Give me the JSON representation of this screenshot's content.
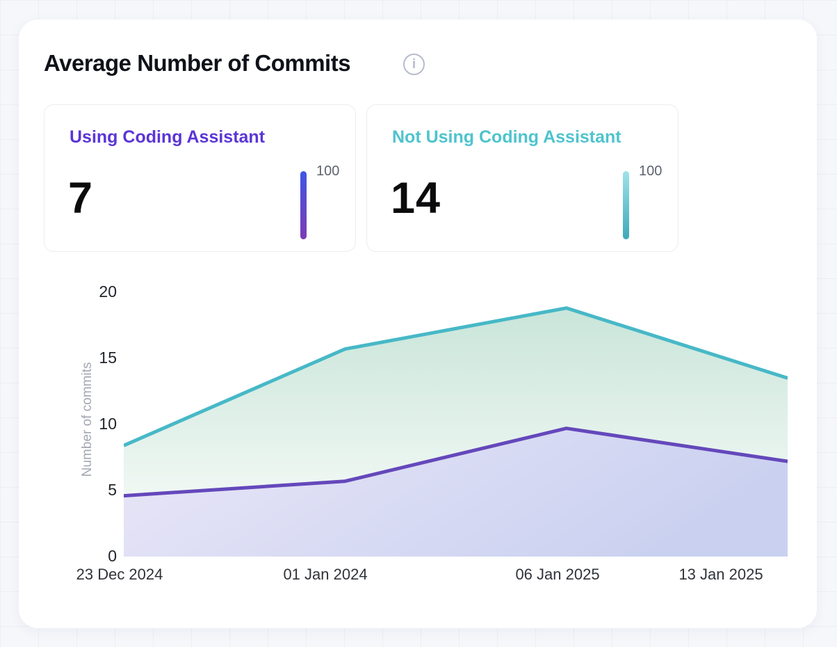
{
  "header": {
    "title": "Average Number of Commits"
  },
  "stat_cards": [
    {
      "label": "Using Coding Assistant",
      "value": "7",
      "scale_max": "100",
      "accent_color": "#5b35d6",
      "bar_gradient": [
        "#3e56e4",
        "#7d3cb4"
      ]
    },
    {
      "label": "Not Using Coding Assistant",
      "value": "14",
      "scale_max": "100",
      "accent_color": "#4ec4cd",
      "bar_gradient": [
        "#9fe2e8",
        "#3fa9ba"
      ]
    }
  ],
  "chart_data": {
    "type": "area",
    "title": "Average Number of Commits",
    "x": [
      "23 Dec 2024",
      "01 Jan 2024",
      "06 Jan 2025",
      "13 Jan 2025"
    ],
    "series": [
      {
        "name": "Not Using Coding Assistant",
        "values": [
          8.4,
          15.7,
          18.8,
          13.5
        ],
        "line_color": "#47b8c7",
        "fill_gradient": [
          "#c9e5d9",
          "#fdfefd"
        ]
      },
      {
        "name": "Using Coding Assistant",
        "values": [
          4.6,
          5.7,
          9.7,
          7.2
        ],
        "line_color": "#6448bb",
        "fill_gradient": [
          "#eae7f8",
          "#cad1f0"
        ]
      }
    ],
    "xlabel": "",
    "ylabel": "Number of commits",
    "yticks": [
      0,
      5,
      10,
      15,
      20
    ],
    "ylim": [
      0,
      20
    ],
    "grid": false,
    "legend": "none"
  }
}
